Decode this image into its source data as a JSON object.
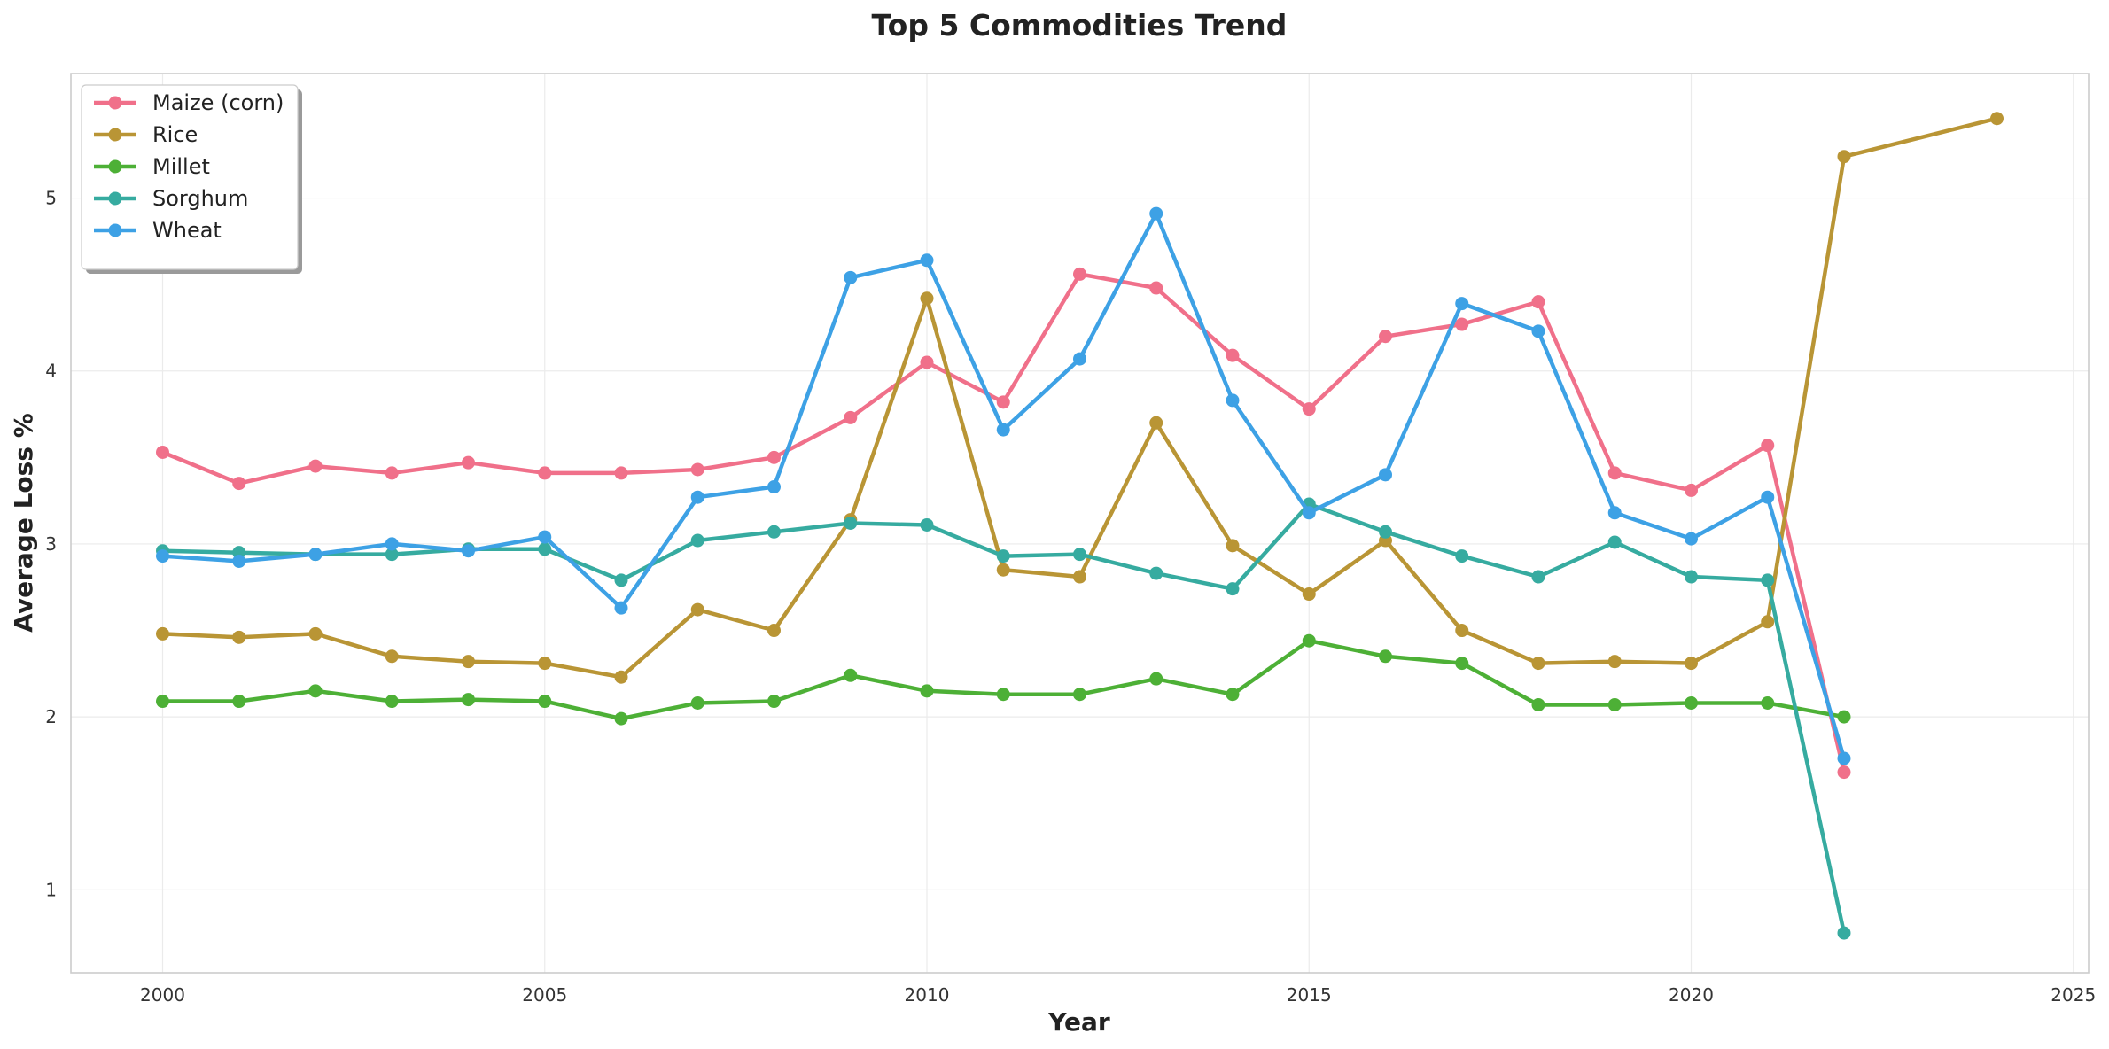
{
  "chart_data": {
    "type": "line",
    "title": "Top 5 Commodities Trend",
    "xlabel": "Year",
    "ylabel": "Average Loss %",
    "xlim": [
      1998.8,
      2025.2
    ],
    "ylim": [
      0.52,
      5.72
    ],
    "x_ticks": [
      2000,
      2005,
      2010,
      2015,
      2020,
      2025
    ],
    "y_ticks": [
      1,
      2,
      3,
      4,
      5
    ],
    "grid": true,
    "legend_position": "top-left",
    "series": [
      {
        "name": "Maize (corn)",
        "color": "#f0708a",
        "x": [
          2000,
          2001,
          2002,
          2003,
          2004,
          2005,
          2006,
          2007,
          2008,
          2009,
          2010,
          2011,
          2012,
          2013,
          2014,
          2015,
          2016,
          2017,
          2018,
          2019,
          2020,
          2021,
          2022
        ],
        "y": [
          3.53,
          3.35,
          3.45,
          3.41,
          3.47,
          3.41,
          3.41,
          3.43,
          3.5,
          3.73,
          4.05,
          3.82,
          4.56,
          4.48,
          4.09,
          3.78,
          4.2,
          4.27,
          4.4,
          3.41,
          3.31,
          3.57,
          1.68
        ]
      },
      {
        "name": "Rice",
        "color": "#b99535",
        "x": [
          2000,
          2001,
          2002,
          2003,
          2004,
          2005,
          2006,
          2007,
          2008,
          2009,
          2010,
          2011,
          2012,
          2013,
          2014,
          2015,
          2016,
          2017,
          2018,
          2019,
          2020,
          2021,
          2022,
          2024
        ],
        "y": [
          2.48,
          2.46,
          2.48,
          2.35,
          2.32,
          2.31,
          2.23,
          2.62,
          2.5,
          3.14,
          4.42,
          2.85,
          2.81,
          3.7,
          2.99,
          2.71,
          3.02,
          2.5,
          2.31,
          2.32,
          2.31,
          2.55,
          5.24,
          5.46
        ]
      },
      {
        "name": "Millet",
        "color": "#4db036",
        "x": [
          2000,
          2001,
          2002,
          2003,
          2004,
          2005,
          2006,
          2007,
          2008,
          2009,
          2010,
          2011,
          2012,
          2013,
          2014,
          2015,
          2016,
          2017,
          2018,
          2019,
          2020,
          2021,
          2022
        ],
        "y": [
          2.09,
          2.09,
          2.15,
          2.09,
          2.1,
          2.09,
          1.99,
          2.08,
          2.09,
          2.24,
          2.15,
          2.13,
          2.13,
          2.22,
          2.13,
          2.44,
          2.35,
          2.31,
          2.07,
          2.07,
          2.08,
          2.08,
          2.0
        ]
      },
      {
        "name": "Sorghum",
        "color": "#36aba0",
        "x": [
          2000,
          2001,
          2002,
          2003,
          2004,
          2005,
          2006,
          2007,
          2008,
          2009,
          2010,
          2011,
          2012,
          2013,
          2014,
          2015,
          2016,
          2017,
          2018,
          2019,
          2020,
          2021,
          2022
        ],
        "y": [
          2.96,
          2.95,
          2.94,
          2.94,
          2.97,
          2.97,
          2.79,
          3.02,
          3.07,
          3.12,
          3.11,
          2.93,
          2.94,
          2.83,
          2.74,
          3.23,
          3.07,
          2.93,
          2.81,
          3.01,
          2.81,
          2.79,
          0.75
        ]
      },
      {
        "name": "Wheat",
        "color": "#3da1e5",
        "x": [
          2000,
          2001,
          2002,
          2003,
          2004,
          2005,
          2006,
          2007,
          2008,
          2009,
          2010,
          2011,
          2012,
          2013,
          2014,
          2015,
          2016,
          2017,
          2018,
          2019,
          2020,
          2021,
          2022
        ],
        "y": [
          2.93,
          2.9,
          2.94,
          3.0,
          2.96,
          3.04,
          2.63,
          3.27,
          3.33,
          4.54,
          4.64,
          3.66,
          4.07,
          4.91,
          3.83,
          3.18,
          3.4,
          4.39,
          4.23,
          3.18,
          3.03,
          3.27,
          1.76
        ]
      }
    ]
  }
}
